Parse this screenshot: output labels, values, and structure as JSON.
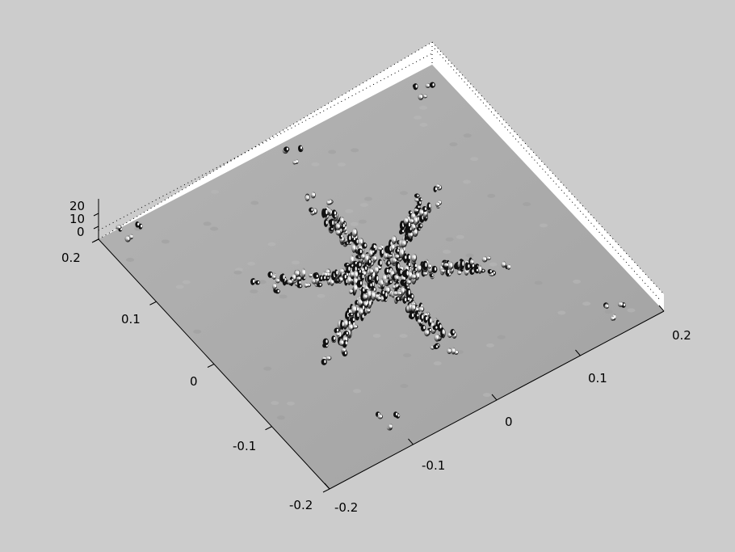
{
  "figure": {
    "background": "#cccccc"
  },
  "chart_data": {
    "type": "surface-3d",
    "title": "",
    "xlabel": "",
    "ylabel": "",
    "zlabel": "",
    "xlim": [
      -0.2,
      0.2
    ],
    "ylim": [
      -0.2,
      0.2
    ],
    "zlim": [
      0,
      20
    ],
    "x_tick_labels": [
      "-0.2",
      "-0.1",
      "0",
      "0.1",
      "0.2"
    ],
    "y_tick_labels": [
      "-0.2",
      "-0.1",
      "0",
      "0.1",
      "0.2"
    ],
    "z_tick_labels": [
      "0",
      "10",
      "20"
    ],
    "grid": false,
    "surface_color": "#a8a8a8",
    "back_wall_color": "#ffffff",
    "description_of_surface": "flat plane near z=0 with sharp spikes arranged in a six-pointed star / Koch-snowflake-like fractal pattern centered near (0,0)"
  }
}
